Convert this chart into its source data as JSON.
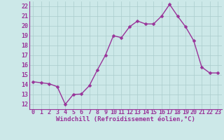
{
  "x": [
    0,
    1,
    2,
    3,
    4,
    5,
    6,
    7,
    8,
    9,
    10,
    11,
    12,
    13,
    14,
    15,
    16,
    17,
    18,
    19,
    20,
    21,
    22,
    23
  ],
  "y": [
    14.3,
    14.2,
    14.1,
    13.8,
    12.0,
    13.0,
    13.05,
    13.9,
    15.5,
    17.0,
    19.0,
    18.8,
    19.9,
    20.5,
    20.2,
    20.2,
    21.0,
    22.2,
    21.0,
    19.9,
    18.5,
    15.8,
    15.2,
    15.2
  ],
  "line_color": "#993399",
  "marker_color": "#993399",
  "bg_color": "#cce8e8",
  "grid_color": "#aacccc",
  "xlabel": "Windchill (Refroidissement éolien,°C)",
  "xlabel_color": "#993399",
  "xtick_color": "#993399",
  "ytick_color": "#993399",
  "ylim_min": 11.5,
  "ylim_max": 22.5,
  "xlim_min": -0.5,
  "xlim_max": 23.5,
  "yticks": [
    12,
    13,
    14,
    15,
    16,
    17,
    18,
    19,
    20,
    21,
    22
  ],
  "xticks": [
    0,
    1,
    2,
    3,
    4,
    5,
    6,
    7,
    8,
    9,
    10,
    11,
    12,
    13,
    14,
    15,
    16,
    17,
    18,
    19,
    20,
    21,
    22,
    23
  ],
  "xlabel_fontsize": 6.5,
  "tick_fontsize": 6,
  "line_width": 1.0,
  "marker_size": 2.5
}
